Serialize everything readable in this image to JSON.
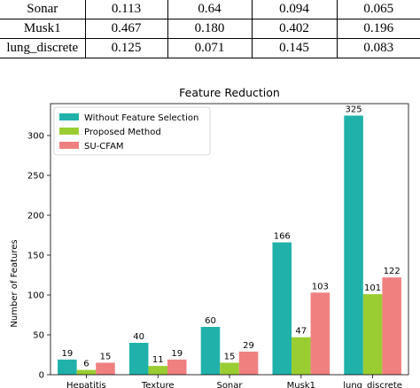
{
  "table": {
    "rows": [
      [
        "Sonar",
        "0.113",
        "0.64",
        "0.094",
        "0.065"
      ],
      [
        "Musk1",
        "0.467",
        "0.180",
        "0.402",
        "0.196"
      ],
      [
        "lung_discrete",
        "0.125",
        "0.071",
        "0.145",
        "0.083"
      ]
    ]
  },
  "chart_data": {
    "type": "bar",
    "title": "Feature Reduction",
    "xlabel": "",
    "ylabel": "Number of Features",
    "categories": [
      "Hepatitis",
      "Texture",
      "Sonar",
      "Musk1",
      "lung_discrete"
    ],
    "series": [
      {
        "name": "Without Feature Selection",
        "values": [
          19,
          40,
          60,
          166,
          325
        ],
        "color": "#20b2aa"
      },
      {
        "name": "Proposed Method",
        "values": [
          6,
          11,
          15,
          47,
          101
        ],
        "color": "#9acd32"
      },
      {
        "name": "SU-CFAM",
        "values": [
          15,
          19,
          29,
          103,
          122
        ],
        "color": "#f08080"
      }
    ],
    "ylim": [
      0,
      340
    ],
    "yticks": [
      0,
      50,
      100,
      150,
      200,
      250,
      300
    ],
    "legend": "top-left",
    "grid": false,
    "data_labels": true
  }
}
